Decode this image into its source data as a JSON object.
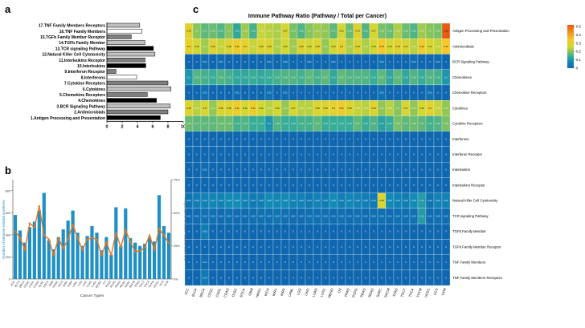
{
  "panels": {
    "a": "a",
    "b": "b",
    "c": "c"
  },
  "chart_data": [
    {
      "type": "bar",
      "orientation": "horizontal",
      "categories": [
        "1.Antigen Processing and Presentation",
        "2.Antimicrobials",
        "3.BCR Signaling Pathway",
        "4.Chemokines",
        "5.Chemokine Receptors",
        "6.Cytokines",
        "7.Cytokine Receptors",
        "8.Interferons",
        "9.Interferon Receptor",
        "10.Interleukins",
        "11.Interleukins Receptor",
        "12.Natural Killer Cell Cytotoxicity",
        "13.TCR signaling Pathway",
        "14.TGFb Family Member",
        "15.TGFb Family Member Receptor",
        "16.TNF Family Members",
        "17.TNF Family Members Receptors"
      ],
      "values": [
        7.0,
        8.0,
        8.3,
        6.5,
        5.3,
        8.4,
        8.0,
        3.9,
        1.2,
        5.1,
        5.0,
        6.3,
        6.1,
        5.0,
        3.2,
        4.6,
        4.3
      ],
      "bar_colors": [
        "#000000",
        "#7f7f7f",
        "#bfbfbf",
        "#000000",
        "#7f7f7f",
        "#bfbfbf",
        "#7f7f7f",
        "#ffffff",
        "#7f7f7f",
        "#000000",
        "#7f7f7f",
        "#bfbfbf",
        "#000000",
        "#bfbfbf",
        "#7f7f7f",
        "#ffffff",
        "#bfbfbf"
      ],
      "xlabel": "log2(Number of immune-related genes)",
      "xticks": [
        "0",
        "2",
        "4",
        "6",
        "8",
        "10"
      ],
      "xlim": [
        0,
        10
      ]
    },
    {
      "type": "bar+line",
      "categories": [
        "ACC",
        "BLCA",
        "BRCA",
        "CESC",
        "CHOL",
        "COAD",
        "DLBC",
        "ESCA",
        "GBM",
        "HNSC",
        "KICH",
        "KIRC",
        "KIRP",
        "LAML",
        "LGG",
        "LIHC",
        "LUAD",
        "LUSC",
        "MESO",
        "OV",
        "PAAD",
        "PCPG",
        "PRAD",
        "READ",
        "SARC",
        "SKCM",
        "STAD",
        "TGCT",
        "THCA",
        "THYM",
        "UCEC",
        "UCS",
        "UVM"
      ],
      "series": [
        {
          "axis": "left",
          "color": "#1f8fc4",
          "values": [
            580,
            440,
            330,
            470,
            520,
            620,
            780,
            350,
            270,
            380,
            450,
            530,
            620,
            420,
            300,
            390,
            480,
            420,
            260,
            380,
            220,
            650,
            300,
            640,
            370,
            330,
            300,
            320,
            380,
            340,
            760,
            480,
            420
          ]
        },
        {
          "axis": "right",
          "color": "#e2771f",
          "values": [
            0.36,
            0.31,
            0.22,
            0.42,
            0.39,
            0.55,
            0.33,
            0.3,
            0.18,
            0.31,
            0.23,
            0.3,
            0.41,
            0.31,
            0.22,
            0.3,
            0.31,
            0.3,
            0.18,
            0.28,
            0.18,
            0.35,
            0.24,
            0.37,
            0.28,
            0.21,
            0.21,
            0.24,
            0.33,
            0.22,
            0.38,
            0.33,
            0.27
          ]
        }
      ],
      "ylabel_left": "Number of immune-related sncRNAs",
      "ylabel_right": "Proportion of immune-related sncRNAs",
      "xlabel": "Cancer Types",
      "yticks_left": [
        "0",
        "200",
        "400",
        "600",
        "800"
      ],
      "yticks_right": [
        "0%",
        "25%",
        "50%",
        "75%"
      ],
      "ylim_left": [
        0,
        900
      ],
      "ylim_right": [
        0,
        0.75
      ]
    },
    {
      "type": "heatmap",
      "title": "Immune Pathway Ratio (Pathway / Total per Cancer)",
      "columns": [
        "ACC",
        "BLCA",
        "BRCA",
        "CESC",
        "CHOL",
        "COAD",
        "DLBC",
        "ESCA",
        "GBM",
        "HNSC",
        "KICH",
        "KIRC",
        "KIRP",
        "LAML",
        "LGG",
        "LIHC",
        "LUAD",
        "LUSC",
        "MESO",
        "OV",
        "PAAD",
        "PCPG",
        "PRAD",
        "READ",
        "SARC",
        "SKCM",
        "STAD",
        "TGCT",
        "THCA",
        "THYM",
        "UCEC",
        "UCS",
        "UVM"
      ],
      "rows": [
        "Antigen Processing and Presentation",
        "Antimicrobials",
        "BCR Signaling Pathway",
        "Chemokines",
        "Chemokine Receptors",
        "Cytokines",
        "Cytokine Receptors",
        "Interferons",
        "Interferon Receptor",
        "Interleukins",
        "Interleukins Receptor",
        "Natural Killer Cell Cytotoxicity",
        "TCR signaling Pathway",
        "TGFb Family Member",
        "TGFb Family Member Receptor",
        "TNF Family Members",
        "TNF Family Members Receptors"
      ],
      "values": [
        [
          0.29,
          0.2,
          0.17,
          0.18,
          0.16,
          0.2,
          0.13,
          0.22,
          0.15,
          0.25,
          0.24,
          0.23,
          0.27,
          0.19,
          0.16,
          0.2,
          0.22,
          0.21,
          0.17,
          0.26,
          0.18,
          0.29,
          0.16,
          0.27,
          0.19,
          0.18,
          0.23,
          0.18,
          0.16,
          0.22,
          0.2,
          0.19,
          0.52
        ],
        [
          0.3,
          0.26,
          0.22,
          0.29,
          0.25,
          0.28,
          0.32,
          0.3,
          0.25,
          0.28,
          0.28,
          0.23,
          0.26,
          0.22,
          0.28,
          0.26,
          0.28,
          0.21,
          0.26,
          0.3,
          0.23,
          0.28,
          0.23,
          0.26,
          0.33,
          0.26,
          0.29,
          0.27,
          0.24,
          0.32,
          0.27,
          0.25,
          0.34
        ],
        [
          0,
          0,
          0.01,
          0,
          0.01,
          0,
          0,
          0,
          0,
          0,
          0.01,
          0,
          0.02,
          0,
          0,
          0.01,
          0,
          0,
          0.01,
          0,
          0,
          0,
          0,
          0,
          0.02,
          0,
          0,
          0,
          0.01,
          0,
          0,
          0.01,
          0
        ],
        [
          0.1,
          0.16,
          0.15,
          0.14,
          0.16,
          0.15,
          0.13,
          0.13,
          0.14,
          0.13,
          0.14,
          0.15,
          0.16,
          0.16,
          0.15,
          0.17,
          0.15,
          0.17,
          0.13,
          0.17,
          0.16,
          0.16,
          0.16,
          0.14,
          0.17,
          0.13,
          0.17,
          0.13,
          0.16,
          0.14,
          0.16,
          0.15,
          0.1
        ],
        [
          0,
          0,
          0.02,
          0,
          0,
          0,
          0.01,
          0,
          0,
          0,
          0.02,
          0,
          0.01,
          0,
          0,
          0,
          0,
          0,
          0,
          0,
          0,
          0,
          0,
          0,
          0.02,
          0,
          0,
          0,
          0,
          0,
          0.02,
          0,
          0
        ],
        [
          0.28,
          0.24,
          0.27,
          0.21,
          0.28,
          0.28,
          0.32,
          0.26,
          0.32,
          0.26,
          0.24,
          0.26,
          0.21,
          0.27,
          0.24,
          0.24,
          0.28,
          0.28,
          0.3,
          0.32,
          0.28,
          0.25,
          0.24,
          0.29,
          0.21,
          0.24,
          0.2,
          0.27,
          0.21,
          0.26,
          0.3,
          0.25,
          0.21
        ],
        [
          0.18,
          0.17,
          0.17,
          0.17,
          0.18,
          0.18,
          0.15,
          0.16,
          0.14,
          0.14,
          0.1,
          0.16,
          0.14,
          0.14,
          0.15,
          0.15,
          0.17,
          0.14,
          0.14,
          0.14,
          0.14,
          0.17,
          0.14,
          0.16,
          0.12,
          0.14,
          0.19,
          0.17,
          0.18,
          0.17,
          0.15,
          0.16,
          0.19
        ],
        [
          0,
          0,
          0,
          0,
          0,
          0,
          0,
          0,
          0,
          0,
          0,
          0,
          0,
          0,
          0,
          0,
          0,
          0,
          0,
          0,
          0,
          0,
          0,
          0,
          0,
          0,
          0,
          0,
          0,
          0,
          0,
          0,
          0
        ],
        [
          0,
          0,
          0,
          0,
          0,
          0,
          0,
          0,
          0,
          0,
          0,
          0,
          0,
          0,
          0,
          0,
          0,
          0,
          0,
          0,
          0,
          0,
          0,
          0,
          0,
          0,
          0,
          0,
          0,
          0,
          0,
          0,
          0
        ],
        [
          0,
          0,
          0.01,
          0,
          0,
          0,
          0,
          0,
          0,
          0,
          0,
          0,
          0,
          0,
          0,
          0,
          0,
          0,
          0,
          0,
          0,
          0,
          0,
          0,
          0,
          0,
          0,
          0,
          0,
          0,
          0,
          0,
          0
        ],
        [
          0,
          0,
          0,
          0,
          0,
          0,
          0,
          0,
          0,
          0,
          0,
          0,
          0,
          0,
          0,
          0,
          0,
          0,
          0,
          0,
          0,
          0,
          0,
          0,
          0,
          0,
          0,
          0,
          0,
          0,
          0,
          0,
          0
        ],
        [
          0.03,
          0.05,
          0.06,
          0.07,
          0.06,
          0.08,
          0.08,
          0.06,
          0.04,
          0.05,
          0.08,
          0.07,
          0.08,
          0.06,
          0.06,
          0.04,
          0.06,
          0.05,
          0.08,
          0.05,
          0.07,
          0.06,
          0.05,
          0.04,
          0.28,
          0.08,
          0.06,
          0.05,
          0.08,
          0.11,
          0.03,
          0.06,
          0.06
        ],
        [
          0.01,
          0.01,
          0.02,
          0.02,
          0.01,
          0.02,
          0.01,
          0.01,
          0.02,
          0.02,
          0.02,
          0.03,
          0.02,
          0.01,
          0.01,
          0.02,
          0.02,
          0.02,
          0.01,
          0.02,
          0.01,
          0.02,
          0.01,
          0.02,
          0.02,
          0.01,
          0.02,
          0.02,
          0.02,
          0.11,
          0.01,
          0.02,
          0.01
        ],
        [
          0,
          0,
          0.05,
          0,
          0,
          0,
          0,
          0,
          0,
          0,
          0,
          0,
          0,
          0,
          0,
          0,
          0,
          0,
          0,
          0,
          0,
          0,
          0,
          0,
          0,
          0,
          0,
          0,
          0,
          0,
          0,
          0,
          0
        ],
        [
          0,
          0,
          0,
          0,
          0,
          0,
          0,
          0,
          0,
          0,
          0,
          0,
          0,
          0,
          0,
          0,
          0,
          0,
          0,
          0,
          0,
          0,
          0,
          0,
          0,
          0,
          0,
          0,
          0,
          0,
          0,
          0,
          0
        ],
        [
          0,
          0,
          0.01,
          0,
          0,
          0,
          0,
          0,
          0,
          0,
          0,
          0,
          0,
          0,
          0,
          0,
          0,
          0,
          0,
          0,
          0,
          0,
          0,
          0,
          0,
          0,
          0,
          0,
          0,
          0,
          0,
          0,
          0
        ],
        [
          0,
          0,
          0.04,
          0,
          0,
          0,
          0,
          0,
          0,
          0,
          0,
          0,
          0,
          0,
          0,
          0,
          0,
          0,
          0,
          0,
          0,
          0,
          0,
          0,
          0,
          0,
          0,
          0,
          0,
          0,
          0,
          0,
          0
        ]
      ],
      "colorbar_ticks": [
        "0",
        "0.1",
        "0.2",
        "0.3",
        "0.4",
        "0.5"
      ],
      "vlim": [
        0,
        0.52
      ]
    }
  ]
}
